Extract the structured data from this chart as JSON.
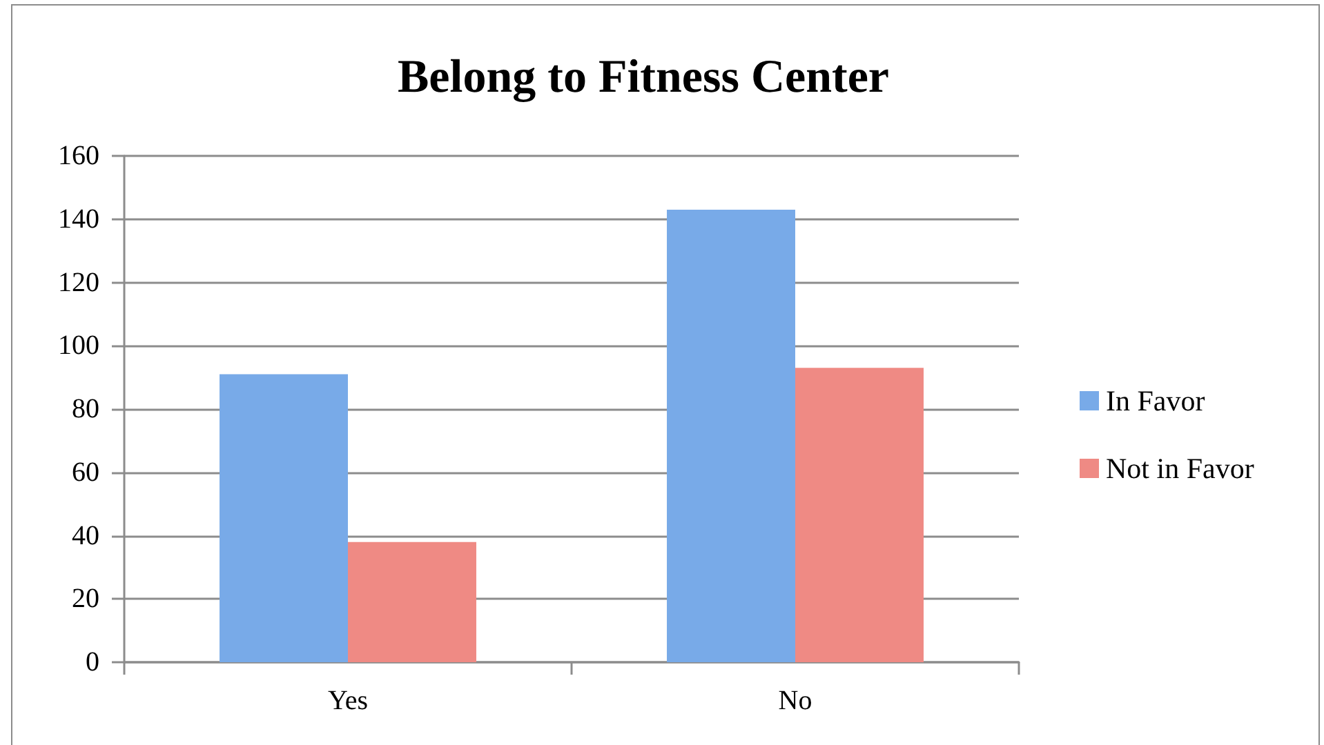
{
  "chart_data": {
    "type": "bar",
    "title": "Belong to Fitness Center",
    "categories": [
      "Yes",
      "No"
    ],
    "series": [
      {
        "name": "In Favor",
        "color": "#78aae8",
        "values": [
          91,
          143
        ]
      },
      {
        "name": "Not in Favor",
        "color": "#ef8a84",
        "values": [
          38,
          93
        ]
      }
    ],
    "ylim": [
      0,
      160
    ],
    "yticks": [
      0,
      20,
      40,
      60,
      80,
      100,
      120,
      140,
      160
    ],
    "grid": "y",
    "legend": "right"
  }
}
